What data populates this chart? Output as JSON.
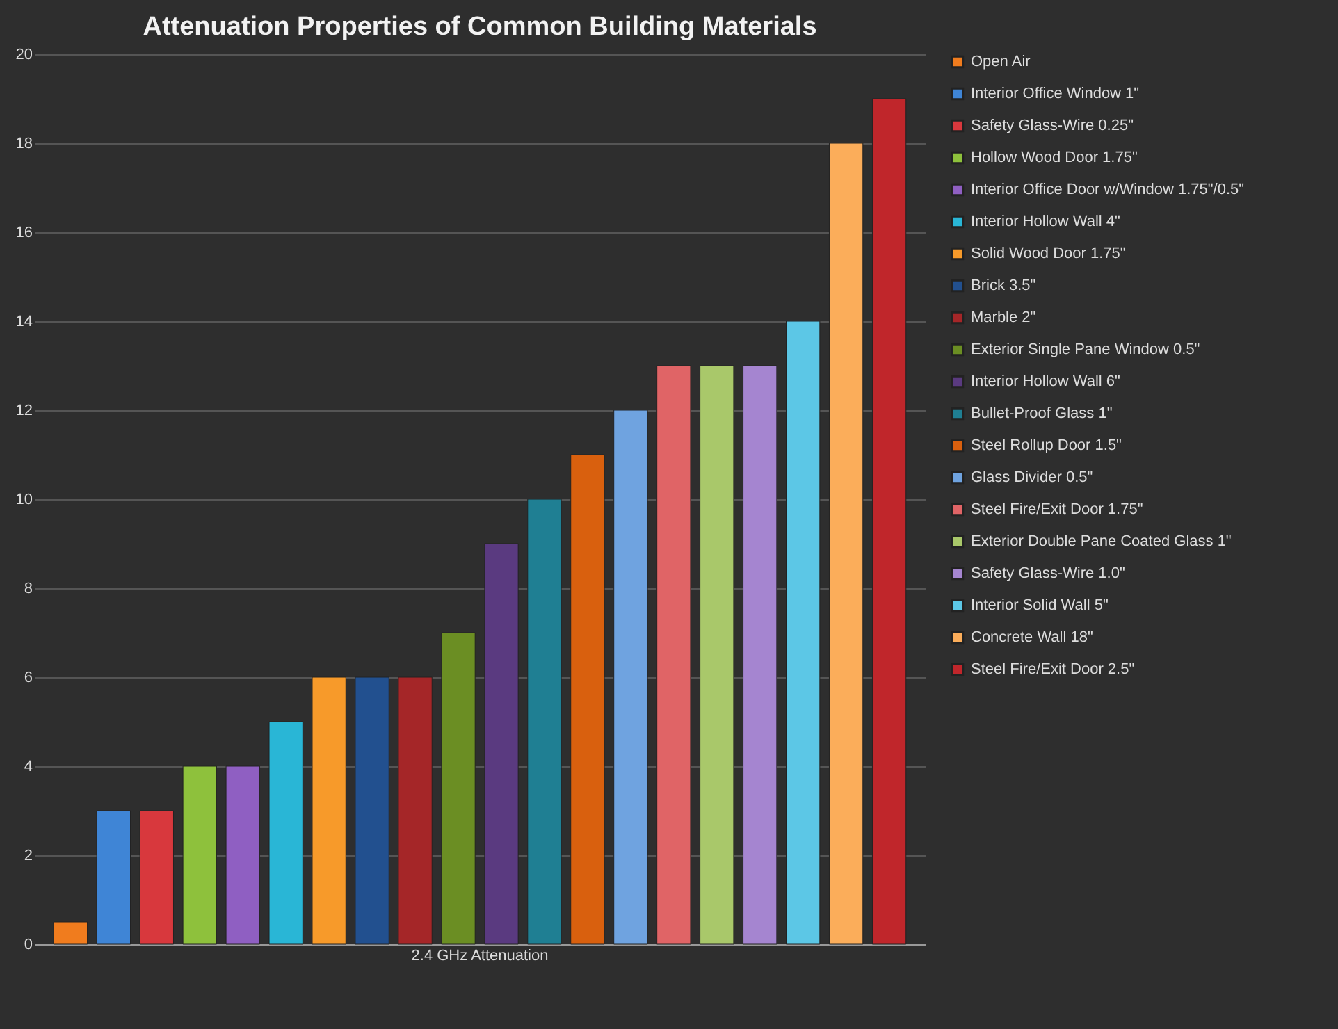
{
  "chart_data": {
    "type": "bar",
    "title": "Attenuation Properties of Common Building Materials",
    "categories": [
      "2.4 GHz Attenuation"
    ],
    "series": [
      {
        "name": "Open Air",
        "color": "#f07c1e",
        "values": [
          0.5
        ]
      },
      {
        "name": "Interior Office Window 1\"",
        "color": "#3f85d6",
        "values": [
          3
        ]
      },
      {
        "name": "Safety Glass-Wire 0.25\"",
        "color": "#d8383d",
        "values": [
          3
        ]
      },
      {
        "name": "Hollow Wood Door 1.75\"",
        "color": "#8ec13c",
        "values": [
          4
        ]
      },
      {
        "name": "Interior Office Door w/Window 1.75\"/0.5\"",
        "color": "#8f5fc2",
        "values": [
          4
        ]
      },
      {
        "name": "Interior Hollow Wall 4\"",
        "color": "#29b6d6",
        "values": [
          5
        ]
      },
      {
        "name": "Solid Wood Door 1.75\"",
        "color": "#f79a2a",
        "values": [
          6
        ]
      },
      {
        "name": "Brick 3.5\"",
        "color": "#22508f",
        "values": [
          6
        ]
      },
      {
        "name": "Marble 2\"",
        "color": "#a52628",
        "values": [
          6
        ]
      },
      {
        "name": "Exterior Single Pane Window 0.5\"",
        "color": "#6b8e23",
        "values": [
          7
        ]
      },
      {
        "name": "Interior Hollow Wall 6\"",
        "color": "#5a3a80",
        "values": [
          9
        ]
      },
      {
        "name": "Bullet-Proof Glass 1\"",
        "color": "#1f7f93",
        "values": [
          10
        ]
      },
      {
        "name": "Steel Rollup Door 1.5\"",
        "color": "#d9600e",
        "values": [
          11
        ]
      },
      {
        "name": "Glass Divider 0.5\"",
        "color": "#6fa3e0",
        "values": [
          12
        ]
      },
      {
        "name": "Steel Fire/Exit Door 1.75\"",
        "color": "#e06466",
        "values": [
          13
        ]
      },
      {
        "name": "Exterior Double Pane Coated Glass 1\"",
        "color": "#a9c86a",
        "values": [
          13
        ]
      },
      {
        "name": "Safety Glass-Wire 1.0\"",
        "color": "#a585d0",
        "values": [
          13
        ]
      },
      {
        "name": "Interior Solid Wall 5\"",
        "color": "#5cc7e6",
        "values": [
          14
        ]
      },
      {
        "name": "Concrete Wall 18\"",
        "color": "#fbad5a",
        "values": [
          18
        ]
      },
      {
        "name": "Steel Fire/Exit Door 2.5\"",
        "color": "#c0262b",
        "values": [
          19
        ]
      }
    ],
    "ylim": [
      0,
      20
    ],
    "yticks": [
      0,
      2,
      4,
      6,
      8,
      10,
      12,
      14,
      16,
      18,
      20
    ],
    "grid": "y",
    "legend": "right"
  }
}
